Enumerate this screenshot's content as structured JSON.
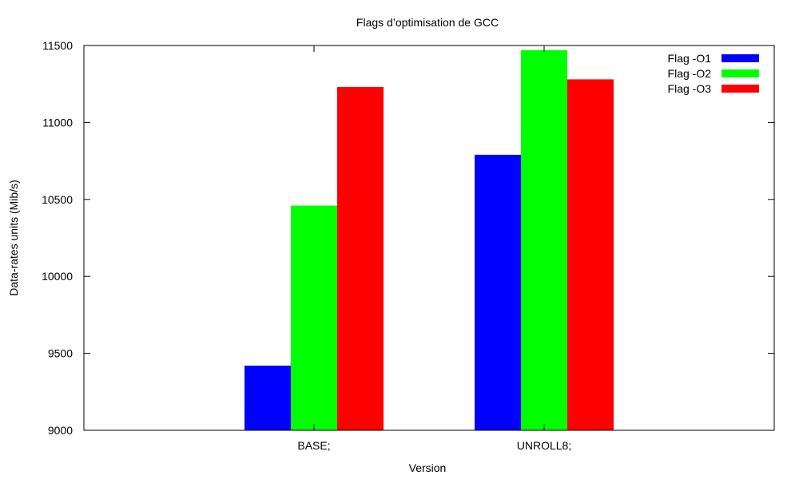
{
  "chart_data": {
    "type": "bar",
    "title": "Flags d’optimisation de GCC",
    "xlabel": "Version",
    "ylabel": "Data-rates units (Mib/s)",
    "ylim": [
      9000,
      11500
    ],
    "yticks": [
      9000,
      9500,
      10000,
      10500,
      11000,
      11500
    ],
    "categories": [
      "BASE;",
      "UNROLL8;"
    ],
    "series": [
      {
        "name": "Flag -O1",
        "color": "#0000ff",
        "values": [
          9420,
          10790
        ]
      },
      {
        "name": "Flag -O2",
        "color": "#00ff00",
        "values": [
          10460,
          11470
        ]
      },
      {
        "name": "Flag -O3",
        "color": "#ff0000",
        "values": [
          11230,
          11280
        ]
      }
    ],
    "legend": "top-right",
    "grid": false
  }
}
